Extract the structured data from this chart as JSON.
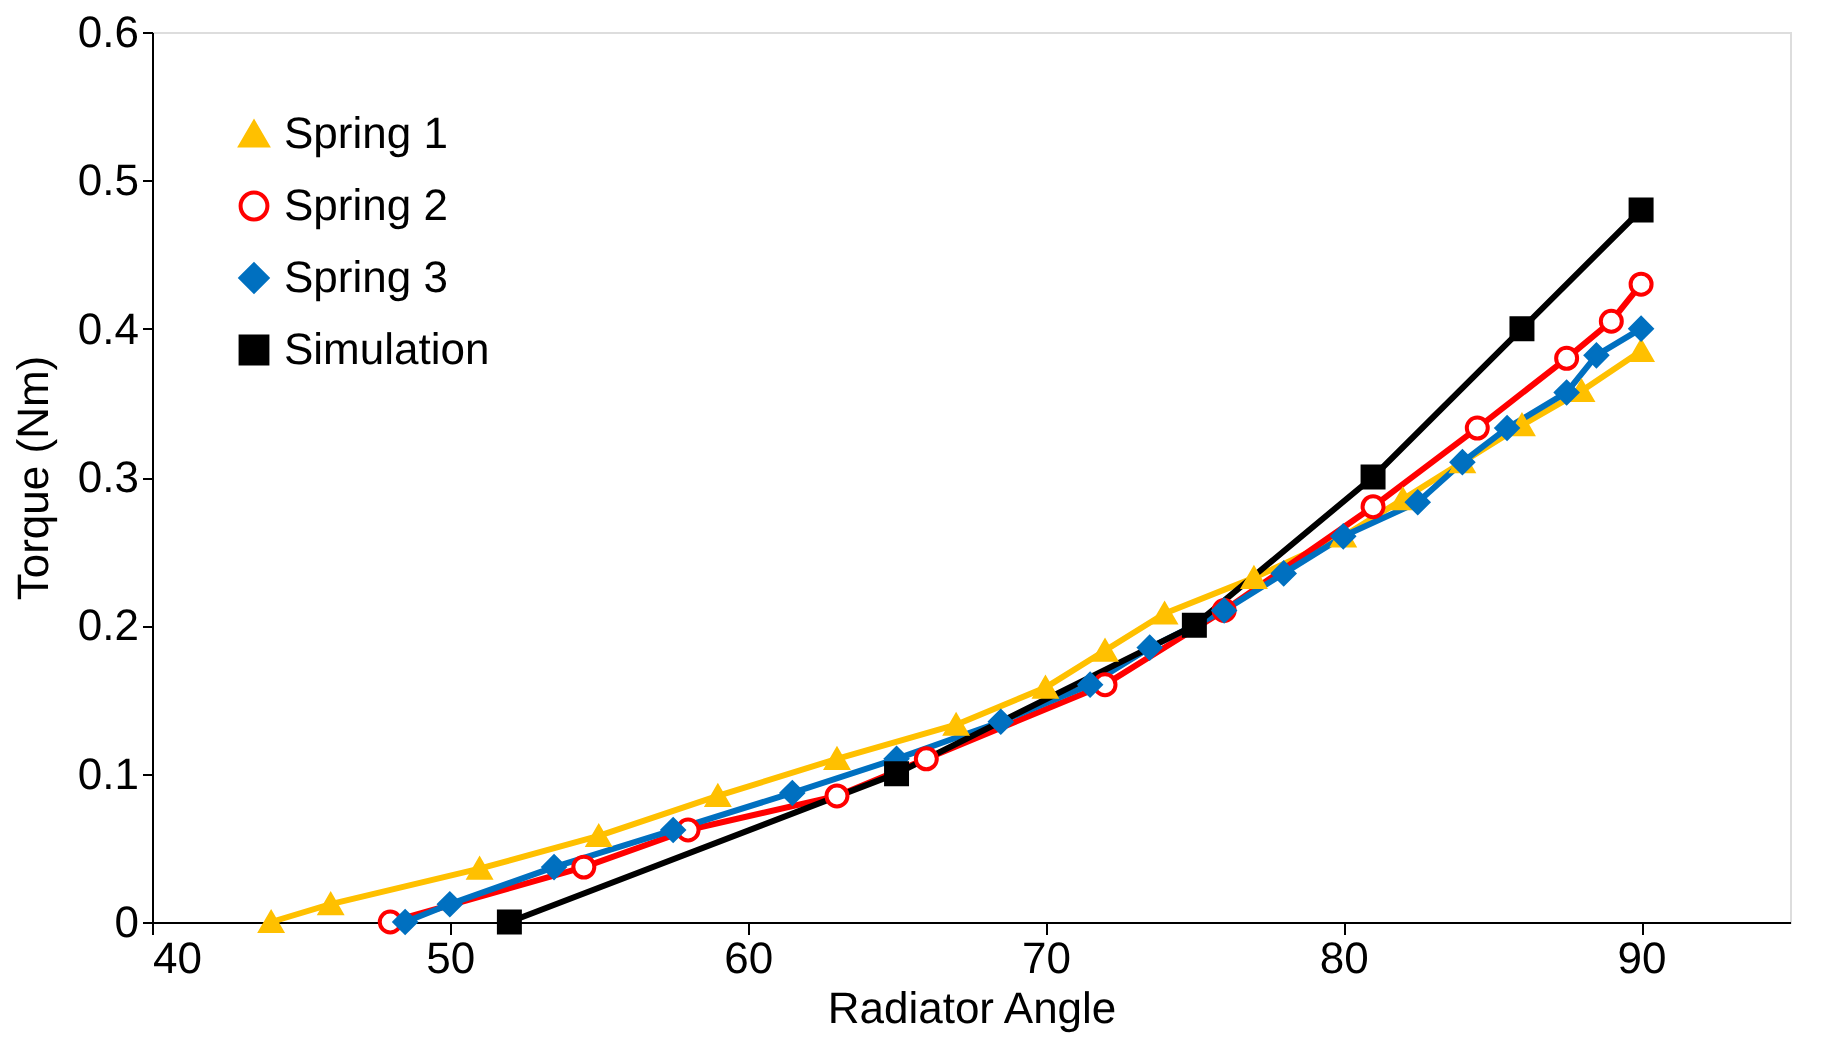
{
  "chart_data": {
    "type": "line",
    "xlabel": "Radiator Angle",
    "ylabel": "Torque (Nm)",
    "xlim": [
      40,
      95
    ],
    "xticks": [
      40,
      50,
      60,
      70,
      80,
      90
    ],
    "ylim": [
      0,
      0.6
    ],
    "yticks": [
      0,
      0.1,
      0.2,
      0.3,
      0.4,
      0.5,
      0.6
    ],
    "grid": false,
    "legend": "top left",
    "line_style": "solid",
    "series": [
      {
        "name": "Spring 1",
        "color": "#ffc000",
        "marker": "triangle",
        "x": [
          44,
          46,
          51,
          55,
          59,
          63,
          67,
          70,
          72,
          74,
          77,
          80,
          82,
          84,
          86,
          88,
          90
        ],
        "values": [
          0,
          0.012,
          0.036,
          0.058,
          0.085,
          0.11,
          0.133,
          0.158,
          0.183,
          0.208,
          0.232,
          0.26,
          0.285,
          0.31,
          0.335,
          0.358,
          0.385
        ]
      },
      {
        "name": "Spring 2",
        "color": "#ff0000",
        "marker": "circle",
        "x": [
          48,
          54.5,
          58,
          63,
          66,
          72,
          76,
          81,
          84.5,
          87.5,
          89,
          90
        ],
        "values": [
          0,
          0.037,
          0.062,
          0.085,
          0.11,
          0.16,
          0.21,
          0.28,
          0.333,
          0.38,
          0.405,
          0.43
        ]
      },
      {
        "name": "Spring 3",
        "color": "#0070c0",
        "marker": "diamond",
        "x": [
          48.5,
          50,
          53.5,
          57.5,
          61.5,
          65,
          68.5,
          71.5,
          73.5,
          76,
          78,
          80,
          82.5,
          84,
          85.5,
          87.5,
          88.5,
          90
        ],
        "values": [
          0,
          0.012,
          0.037,
          0.062,
          0.087,
          0.11,
          0.135,
          0.16,
          0.185,
          0.21,
          0.235,
          0.26,
          0.283,
          0.31,
          0.333,
          0.357,
          0.382,
          0.4
        ]
      },
      {
        "name": "Simulation",
        "color": "#000000",
        "marker": "square",
        "x": [
          52,
          65,
          75,
          81,
          86,
          90
        ],
        "values": [
          0,
          0.1,
          0.2,
          0.3,
          0.4,
          0.48
        ]
      }
    ]
  }
}
